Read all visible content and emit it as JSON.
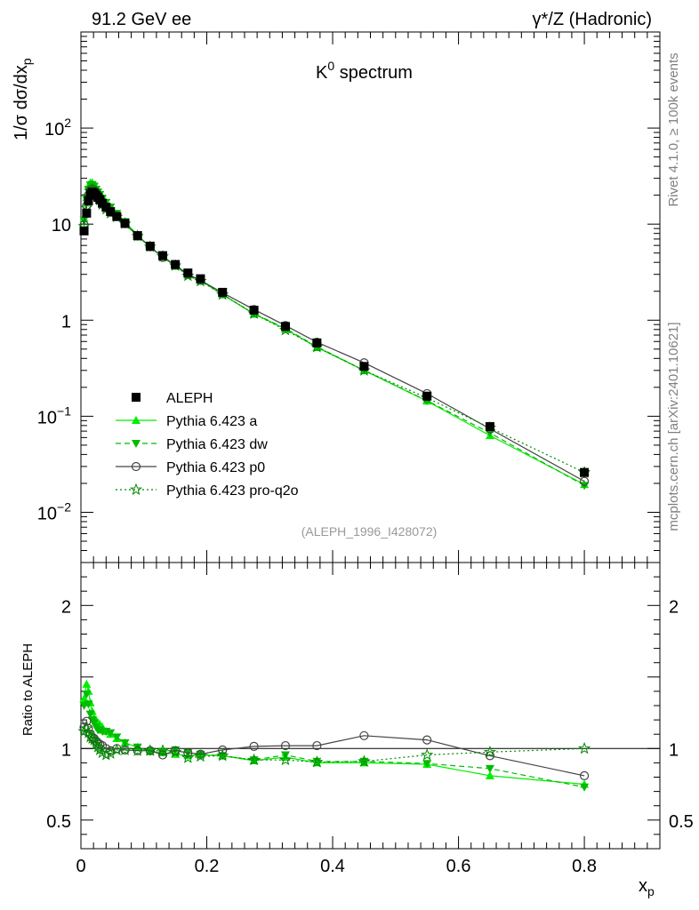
{
  "header": {
    "left": "91.2 GeV ee",
    "right": "γ*/Z (Hadronic)"
  },
  "side_labels": {
    "rivet": "Rivet 4.1.0, ≥ 100k events",
    "mcplots": "mcplots.cern.ch [arXiv:2401.10621]"
  },
  "colors": {
    "data": "#000000",
    "a": "#00ee00",
    "dw": "#00bb00",
    "p0": "#444444",
    "pro": "#008800"
  },
  "chart_data": [
    {
      "type": "line",
      "panel": "main",
      "title": "K",
      "title_sup": "0",
      "title_rest": " spectrum",
      "xlabel": "x",
      "xlabel_sub": "p",
      "ylabel": "1/σ  dσ/dx",
      "ylabel_sub": "p",
      "yscale": "log",
      "xlim": [
        0,
        0.92
      ],
      "ylim": [
        0.003,
        1000
      ],
      "y_tick_labels": [
        {
          "value": 0.01,
          "base": "10",
          "exp": "−2"
        },
        {
          "value": 0.1,
          "base": "10",
          "exp": "−1"
        },
        {
          "value": 1,
          "base": "1",
          "exp": ""
        },
        {
          "value": 10,
          "base": "10",
          "exp": ""
        },
        {
          "value": 100,
          "base": "10",
          "exp": "2"
        }
      ],
      "watermark": "(ALEPH_1996_I428072)",
      "legend_position": "bottom-left",
      "x": [
        0.005,
        0.009,
        0.012,
        0.015,
        0.018,
        0.021,
        0.024,
        0.027,
        0.03,
        0.034,
        0.04,
        0.047,
        0.057,
        0.07,
        0.09,
        0.11,
        0.13,
        0.15,
        0.17,
        0.19,
        0.225,
        0.275,
        0.325,
        0.375,
        0.45,
        0.55,
        0.65,
        0.8
      ],
      "series": [
        {
          "name": "ALEPH",
          "key": "data",
          "style": "square",
          "values": [
            8.5,
            13.0,
            17.5,
            20.5,
            21.5,
            21.0,
            20.0,
            19.0,
            18.0,
            16.5,
            15.0,
            13.5,
            12.0,
            10.2,
            7.6,
            5.9,
            4.7,
            3.8,
            3.1,
            2.7,
            1.95,
            1.27,
            0.86,
            0.58,
            0.33,
            0.162,
            0.078,
            0.026
          ]
        },
        {
          "name": "Pythia 6.423 a",
          "key": "a",
          "style": "solid-triangle-up",
          "values": [
            11.5,
            18.8,
            24.5,
            27.0,
            27.0,
            25.5,
            24.0,
            22.5,
            21.0,
            19.0,
            16.8,
            14.8,
            12.8,
            10.6,
            7.7,
            5.8,
            4.55,
            3.65,
            2.95,
            2.58,
            1.85,
            1.16,
            0.81,
            0.52,
            0.3,
            0.144,
            0.063,
            0.0195
          ]
        },
        {
          "name": "Pythia 6.423 dw",
          "key": "dw",
          "style": "dashed-triangle-down",
          "values": [
            11.0,
            18.0,
            23.0,
            25.5,
            25.8,
            24.8,
            23.0,
            21.5,
            20.3,
            18.5,
            16.8,
            15.0,
            12.9,
            10.6,
            7.7,
            5.8,
            4.6,
            3.75,
            3.0,
            2.6,
            1.85,
            1.17,
            0.82,
            0.53,
            0.3,
            0.145,
            0.067,
            0.019
          ]
        },
        {
          "name": "Pythia 6.423 p0",
          "key": "p0",
          "style": "solid-open-circle",
          "values": [
            9.8,
            15.5,
            20.0,
            22.5,
            23.2,
            22.5,
            21.0,
            19.8,
            18.6,
            16.8,
            15.0,
            13.3,
            12.0,
            10.1,
            7.5,
            5.8,
            4.5,
            3.75,
            3.0,
            2.6,
            1.93,
            1.29,
            0.88,
            0.59,
            0.36,
            0.172,
            0.074,
            0.021
          ]
        },
        {
          "name": "Pythia 6.423 pro-q2o",
          "key": "pro",
          "style": "dotted-open-star",
          "values": [
            9.5,
            14.8,
            19.5,
            22.2,
            23.0,
            22.3,
            20.5,
            19.2,
            17.8,
            16.0,
            14.3,
            13.0,
            11.9,
            10.1,
            7.5,
            5.8,
            4.6,
            3.7,
            2.9,
            2.55,
            1.85,
            1.17,
            0.79,
            0.525,
            0.3,
            0.155,
            0.076,
            0.026
          ]
        }
      ]
    },
    {
      "type": "line",
      "panel": "ratio",
      "ylabel": "Ratio to ALEPH",
      "xlabel": "x",
      "xlabel_sub": "p",
      "xlim": [
        0,
        0.92
      ],
      "ylim": [
        0.3,
        2.3
      ],
      "x_tick_labels": [
        {
          "value": 0,
          "label": "0"
        },
        {
          "value": 0.2,
          "label": "0.2"
        },
        {
          "value": 0.4,
          "label": "0.4"
        },
        {
          "value": 0.6,
          "label": "0.6"
        },
        {
          "value": 0.8,
          "label": "0.8"
        }
      ],
      "y_tick_labels": [
        {
          "value": 0.5,
          "label": "0.5"
        },
        {
          "value": 1,
          "label": "1"
        },
        {
          "value": 2,
          "label": "2"
        }
      ],
      "reference_line": 1,
      "x": [
        0.005,
        0.009,
        0.012,
        0.015,
        0.018,
        0.021,
        0.024,
        0.027,
        0.03,
        0.034,
        0.04,
        0.047,
        0.057,
        0.07,
        0.09,
        0.11,
        0.13,
        0.15,
        0.17,
        0.19,
        0.225,
        0.275,
        0.325,
        0.375,
        0.45,
        0.55,
        0.65,
        0.8
      ],
      "series": [
        {
          "name": "Pythia 6.423 a",
          "key": "a",
          "values": [
            1.35,
            1.45,
            1.4,
            1.32,
            1.26,
            1.21,
            1.2,
            1.18,
            1.17,
            1.15,
            1.12,
            1.1,
            1.07,
            1.04,
            1.01,
            0.98,
            0.97,
            0.96,
            0.95,
            0.955,
            0.95,
            0.915,
            0.94,
            0.9,
            0.9,
            0.89,
            0.81,
            0.75
          ]
        },
        {
          "name": "Pythia 6.423 dw",
          "key": "dw",
          "values": [
            1.3,
            1.38,
            1.31,
            1.24,
            1.2,
            1.18,
            1.15,
            1.13,
            1.13,
            1.12,
            1.12,
            1.11,
            1.08,
            1.04,
            1.01,
            0.98,
            0.98,
            0.99,
            0.97,
            0.96,
            0.95,
            0.92,
            0.955,
            0.91,
            0.91,
            0.895,
            0.86,
            0.73
          ]
        },
        {
          "name": "Pythia 6.423 p0",
          "key": "p0",
          "values": [
            1.15,
            1.19,
            1.14,
            1.1,
            1.08,
            1.07,
            1.05,
            1.04,
            1.03,
            1.02,
            1.0,
            0.985,
            1.0,
            0.99,
            0.985,
            0.985,
            0.955,
            0.985,
            0.97,
            0.96,
            0.99,
            1.015,
            1.02,
            1.02,
            1.09,
            1.06,
            0.95,
            0.81
          ]
        },
        {
          "name": "Pythia 6.423 pro-q2o",
          "key": "pro",
          "values": [
            1.12,
            1.14,
            1.11,
            1.08,
            1.07,
            1.06,
            1.03,
            1.01,
            0.99,
            0.97,
            0.955,
            0.965,
            0.99,
            0.99,
            0.985,
            0.985,
            0.985,
            0.975,
            0.935,
            0.945,
            0.95,
            0.92,
            0.92,
            0.905,
            0.91,
            0.955,
            0.975,
            1.0
          ]
        }
      ]
    }
  ]
}
